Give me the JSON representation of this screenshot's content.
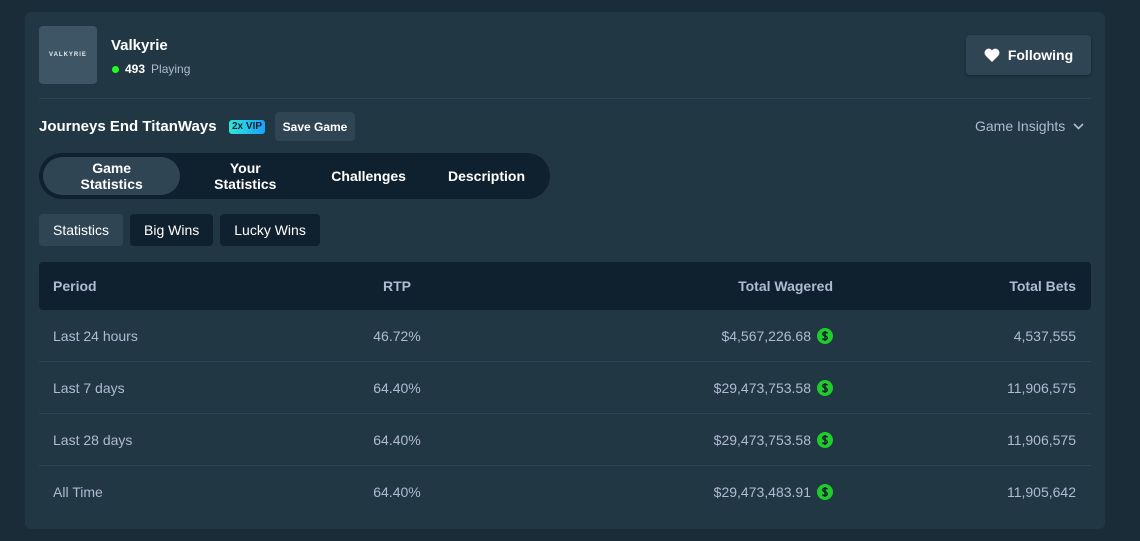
{
  "game": {
    "logo": "VALKYRIE",
    "name": "Valkyrie",
    "players": "493",
    "players_label": "Playing",
    "follow_button": "Following"
  },
  "game_title": "Journeys End TitanWays",
  "badge": "2x VIP",
  "save_button": "Save Game",
  "insights": "Game Insights",
  "tabs": [
    "Game Statistics",
    "Your Statistics",
    "Challenges",
    "Description"
  ],
  "subtabs": [
    "Statistics",
    "Big Wins",
    "Lucky Wins"
  ],
  "table": {
    "columns": [
      "Period",
      "RTP",
      "Total Wagered",
      "Total Bets"
    ],
    "rows": [
      [
        "Last 24 hours",
        "46.72%",
        "$4,567,226.68",
        "4,537,555"
      ],
      [
        "Last 7 days",
        "64.40%",
        "$29,473,753.58",
        "11,906,575"
      ],
      [
        "Last 28 days",
        "64.40%",
        "$29,473,753.58",
        "11,906,575"
      ],
      [
        "All Time",
        "64.40%",
        "$29,473,483.91",
        "11,905,642"
      ]
    ]
  }
}
